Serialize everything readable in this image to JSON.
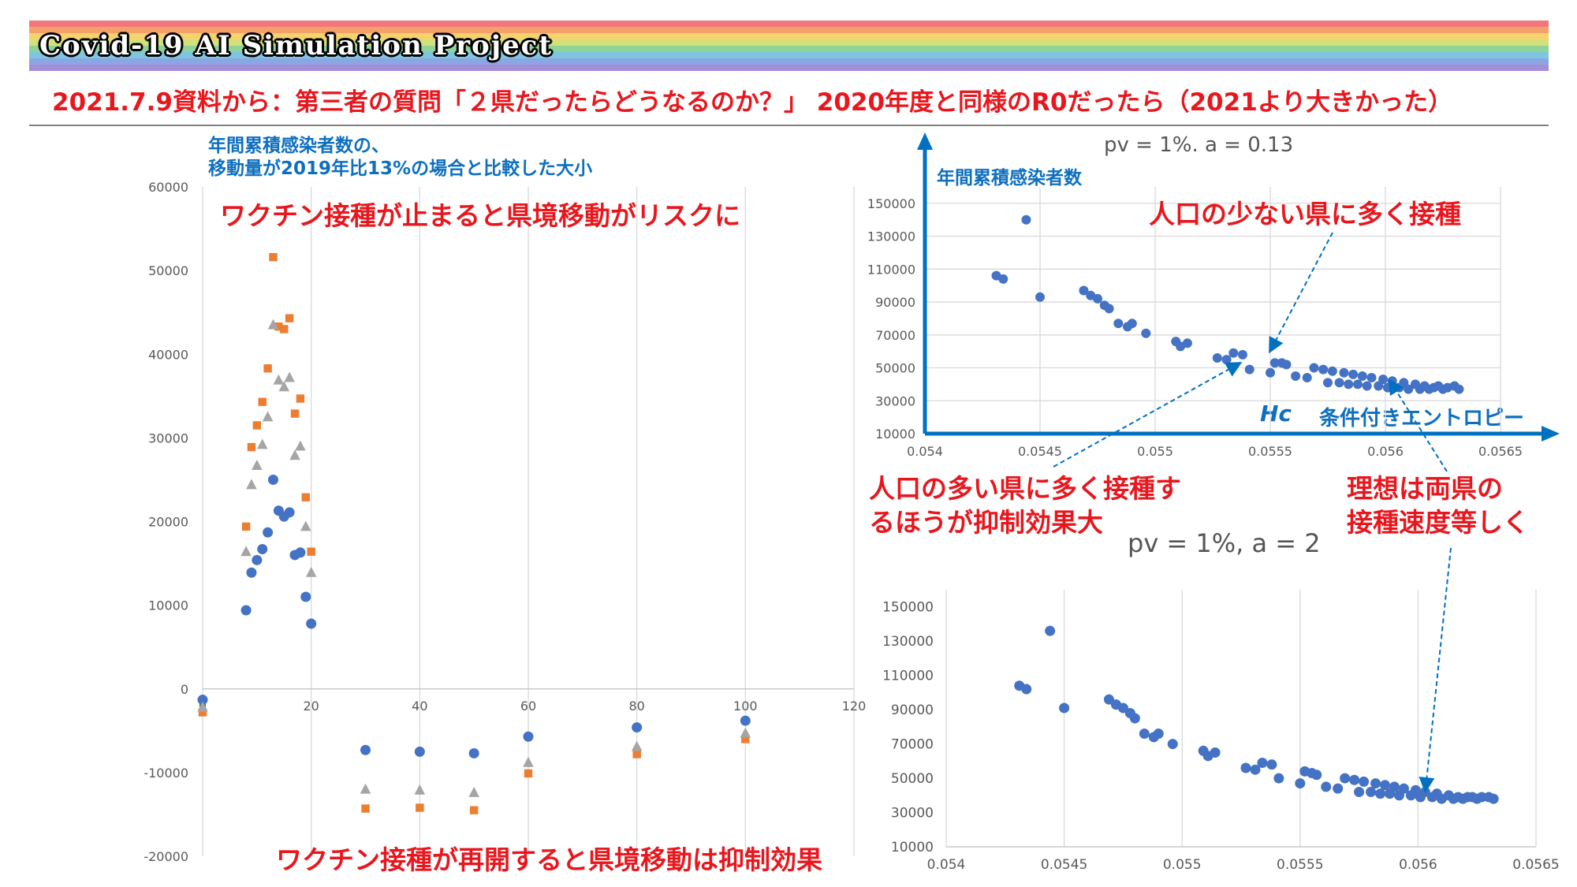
{
  "banner": {
    "title": "Covid-19 AI Simulation Project",
    "stripe_colors": [
      "#f0787c",
      "#f5a06a",
      "#f5d36c",
      "#d4e07a",
      "#8fd39a",
      "#7ec6e0",
      "#8aa7e3",
      "#a48ed8"
    ]
  },
  "headline": "2021.7.9資料から：第三者の質問「２県だったらどうなるのか？」 2020年度と同様のR0だったら（2021より大きかった）",
  "left_chart": {
    "caption_line1": "年間累積感染者数の、",
    "caption_line2": "移動量が2019年比13%の場合と比較した大小",
    "note_top": "ワクチン接種が止まると県境移動がリスクに",
    "note_bottom": "ワクチン接種が再開すると県境移動は抑制効果"
  },
  "right_top": {
    "title": "pv = 1%. a = 0.13",
    "y_axis_label": "年間累積感染者数",
    "x_axis_symbol": "Hc",
    "x_axis_label": "条件付きエントロピー",
    "note_few": "人口の少ない県に多く接種"
  },
  "right_bottom": {
    "title": "pv = 1%, a = 2"
  },
  "notes": {
    "many_line1": "人口の多い県に多く接種す",
    "many_line2": "るほうが抑制効果大",
    "ideal_line1": "理想は両県の",
    "ideal_line2": "接種速度等しく"
  },
  "colors": {
    "red_note": "#e8171e",
    "blue_note": "#0e6fbf",
    "series_blue": "#4472c4",
    "series_orange": "#ed7d31",
    "series_gray": "#a5a5a5",
    "arrow_blue": "#0070c0"
  },
  "chart_data": [
    {
      "type": "scatter",
      "title": "",
      "xlim": [
        0,
        120
      ],
      "ylim": [
        -20000,
        60000
      ],
      "x_ticks": [
        0,
        20,
        40,
        60,
        80,
        100,
        120
      ],
      "y_ticks": [
        -20000,
        -10000,
        0,
        10000,
        20000,
        30000,
        40000,
        50000,
        60000
      ],
      "grid": "vertical",
      "series": [
        {
          "color": "#4472c4",
          "marker": "circle",
          "points": [
            [
              0,
              -1300
            ],
            [
              8,
              9400
            ],
            [
              9,
              13900
            ],
            [
              10,
              15400
            ],
            [
              11,
              16700
            ],
            [
              12,
              18700
            ],
            [
              13,
              25000
            ],
            [
              14,
              21300
            ],
            [
              15,
              20600
            ],
            [
              16,
              21100
            ],
            [
              17,
              16000
            ],
            [
              18,
              16300
            ],
            [
              19,
              11000
            ],
            [
              20,
              7800
            ],
            [
              30,
              -7300
            ],
            [
              40,
              -7500
            ],
            [
              50,
              -7700
            ],
            [
              60,
              -5700
            ],
            [
              80,
              -4600
            ],
            [
              100,
              -3800
            ]
          ]
        },
        {
          "color": "#ed7d31",
          "marker": "square",
          "points": [
            [
              0,
              -2800
            ],
            [
              8,
              19400
            ],
            [
              9,
              28900
            ],
            [
              10,
              31500
            ],
            [
              11,
              34300
            ],
            [
              12,
              38300
            ],
            [
              13,
              51600
            ],
            [
              14,
              43300
            ],
            [
              15,
              43000
            ],
            [
              16,
              44300
            ],
            [
              17,
              32900
            ],
            [
              18,
              34700
            ],
            [
              19,
              22900
            ],
            [
              20,
              16400
            ],
            [
              30,
              -14300
            ],
            [
              40,
              -14200
            ],
            [
              50,
              -14500
            ],
            [
              60,
              -10100
            ],
            [
              80,
              -7800
            ],
            [
              100,
              -6000
            ]
          ]
        },
        {
          "color": "#a5a5a5",
          "marker": "triangle",
          "points": [
            [
              0,
              -2200
            ],
            [
              8,
              16400
            ],
            [
              9,
              24400
            ],
            [
              10,
              26700
            ],
            [
              11,
              29200
            ],
            [
              12,
              32500
            ],
            [
              13,
              43500
            ],
            [
              14,
              36900
            ],
            [
              15,
              36100
            ],
            [
              16,
              37200
            ],
            [
              17,
              27900
            ],
            [
              18,
              29000
            ],
            [
              19,
              19400
            ],
            [
              20,
              13900
            ],
            [
              30,
              -12000
            ],
            [
              40,
              -12100
            ],
            [
              50,
              -12400
            ],
            [
              60,
              -8800
            ],
            [
              80,
              -6900
            ],
            [
              100,
              -5300
            ]
          ]
        }
      ]
    },
    {
      "type": "scatter",
      "title": "pv = 1%. a = 0.13",
      "xlim": [
        0.054,
        0.0565
      ],
      "ylim": [
        10000,
        160000
      ],
      "x_ticks": [
        0.054,
        0.0545,
        0.055,
        0.0555,
        0.056,
        0.0565
      ],
      "y_ticks": [
        10000,
        30000,
        50000,
        70000,
        90000,
        110000,
        130000,
        150000
      ],
      "grid": "both",
      "series": [
        {
          "color": "#4472c4",
          "marker": "circle",
          "points": [
            [
              0.05431,
              106000
            ],
            [
              0.05434,
              104000
            ],
            [
              0.05444,
              140000
            ],
            [
              0.0545,
              93000
            ],
            [
              0.05469,
              97000
            ],
            [
              0.05472,
              94000
            ],
            [
              0.05475,
              92000
            ],
            [
              0.05478,
              88000
            ],
            [
              0.0548,
              86000
            ],
            [
              0.05484,
              77000
            ],
            [
              0.05488,
              75000
            ],
            [
              0.0549,
              77000
            ],
            [
              0.05496,
              71000
            ],
            [
              0.05509,
              66000
            ],
            [
              0.05511,
              63000
            ],
            [
              0.05514,
              65000
            ],
            [
              0.05527,
              56000
            ],
            [
              0.05531,
              55000
            ],
            [
              0.05534,
              59000
            ],
            [
              0.05538,
              58000
            ],
            [
              0.05541,
              49000
            ],
            [
              0.0555,
              47000
            ],
            [
              0.05552,
              53000
            ],
            [
              0.05555,
              53000
            ],
            [
              0.05557,
              52000
            ],
            [
              0.05561,
              45000
            ],
            [
              0.05566,
              44000
            ],
            [
              0.05569,
              50000
            ],
            [
              0.05573,
              49000
            ],
            [
              0.05575,
              41000
            ],
            [
              0.05577,
              48000
            ],
            [
              0.0558,
              41000
            ],
            [
              0.05582,
              47000
            ],
            [
              0.05584,
              40000
            ],
            [
              0.05586,
              46000
            ],
            [
              0.05588,
              40000
            ],
            [
              0.0559,
              45000
            ],
            [
              0.05592,
              39000
            ],
            [
              0.05594,
              44000
            ],
            [
              0.05597,
              39000
            ],
            [
              0.05599,
              43000
            ],
            [
              0.05601,
              38000
            ],
            [
              0.05603,
              42000
            ],
            [
              0.05606,
              38000
            ],
            [
              0.05608,
              41000
            ],
            [
              0.0561,
              37000
            ],
            [
              0.05613,
              40000
            ],
            [
              0.05615,
              37000
            ],
            [
              0.05617,
              39000
            ],
            [
              0.05619,
              37000
            ],
            [
              0.05621,
              38000
            ],
            [
              0.05623,
              39000
            ],
            [
              0.05625,
              37000
            ],
            [
              0.05627,
              38000
            ],
            [
              0.0563,
              39000
            ],
            [
              0.05632,
              37000
            ]
          ]
        }
      ]
    },
    {
      "type": "scatter",
      "title": "pv = 1%, a = 2",
      "xlim": [
        0.054,
        0.0565
      ],
      "ylim": [
        10000,
        160000
      ],
      "x_ticks": [
        0.054,
        0.0545,
        0.055,
        0.0555,
        0.056,
        0.0565
      ],
      "y_ticks": [
        10000,
        30000,
        50000,
        70000,
        90000,
        110000,
        130000,
        150000
      ],
      "grid": "vertical",
      "series": [
        {
          "color": "#4472c4",
          "marker": "circle",
          "points": [
            [
              0.05431,
              104000
            ],
            [
              0.05434,
              102000
            ],
            [
              0.05444,
              136000
            ],
            [
              0.0545,
              91000
            ],
            [
              0.05469,
              96000
            ],
            [
              0.05472,
              93000
            ],
            [
              0.05475,
              91000
            ],
            [
              0.05478,
              88000
            ],
            [
              0.0548,
              85000
            ],
            [
              0.05484,
              76000
            ],
            [
              0.05488,
              74000
            ],
            [
              0.0549,
              76000
            ],
            [
              0.05496,
              70000
            ],
            [
              0.05509,
              66000
            ],
            [
              0.05511,
              63000
            ],
            [
              0.05514,
              65000
            ],
            [
              0.05527,
              56000
            ],
            [
              0.05531,
              55000
            ],
            [
              0.05534,
              59000
            ],
            [
              0.05538,
              58000
            ],
            [
              0.05541,
              50000
            ],
            [
              0.0555,
              47000
            ],
            [
              0.05552,
              54000
            ],
            [
              0.05555,
              53000
            ],
            [
              0.05557,
              52000
            ],
            [
              0.05561,
              45000
            ],
            [
              0.05566,
              44000
            ],
            [
              0.05569,
              50000
            ],
            [
              0.05573,
              49000
            ],
            [
              0.05575,
              42000
            ],
            [
              0.05577,
              48000
            ],
            [
              0.0558,
              42000
            ],
            [
              0.05582,
              47000
            ],
            [
              0.05584,
              41000
            ],
            [
              0.05586,
              46000
            ],
            [
              0.05588,
              41000
            ],
            [
              0.0559,
              45000
            ],
            [
              0.05592,
              40000
            ],
            [
              0.05594,
              44000
            ],
            [
              0.05597,
              40000
            ],
            [
              0.05599,
              43000
            ],
            [
              0.05601,
              39000
            ],
            [
              0.05603,
              42000
            ],
            [
              0.05606,
              39000
            ],
            [
              0.05608,
              41000
            ],
            [
              0.0561,
              38000
            ],
            [
              0.05613,
              40000
            ],
            [
              0.05615,
              38000
            ],
            [
              0.05617,
              39000
            ],
            [
              0.05619,
              38000
            ],
            [
              0.05621,
              39000
            ],
            [
              0.05623,
              39000
            ],
            [
              0.05625,
              38000
            ],
            [
              0.05627,
              39000
            ],
            [
              0.0563,
              39000
            ],
            [
              0.05632,
              38000
            ]
          ]
        }
      ]
    }
  ]
}
